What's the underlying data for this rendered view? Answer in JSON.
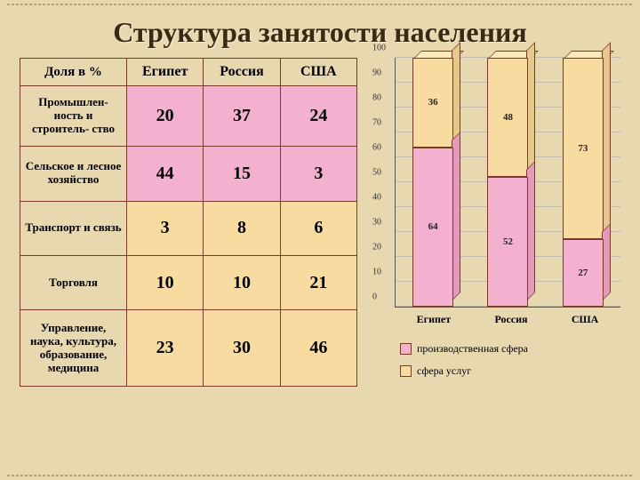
{
  "title": "Структура занятости населения",
  "table": {
    "corner": "Доля в %",
    "countries": [
      "Египет",
      "Россия",
      "США"
    ],
    "rows": [
      {
        "label": "Промышлен-\nность и строитель-\nство",
        "cls": "pink",
        "vals": [
          20,
          37,
          24
        ]
      },
      {
        "label": "Сельское и лесное хозяйство",
        "cls": "pink",
        "vals": [
          44,
          15,
          3
        ]
      },
      {
        "label": "Транспорт и связь",
        "cls": "cream",
        "vals": [
          3,
          8,
          6
        ]
      },
      {
        "label": "Торговля",
        "cls": "cream",
        "vals": [
          10,
          10,
          21
        ]
      },
      {
        "label": "Управление, наука, культура, образование, медицина",
        "cls": "cream",
        "vals": [
          23,
          30,
          46
        ]
      }
    ]
  },
  "chart": {
    "type": "stacked-bar-3d",
    "categories": [
      "Египет",
      "Россия",
      "США"
    ],
    "series": [
      {
        "name": "производственная сфера",
        "color": "pink",
        "values": [
          64,
          52,
          27
        ]
      },
      {
        "name": "сфера услуг",
        "color": "cream",
        "values": [
          36,
          48,
          73
        ]
      }
    ],
    "ylim": [
      0,
      100
    ],
    "ytick_step": 10,
    "colors": {
      "pink": "#f4b0cf",
      "cream": "#f7dba1",
      "border": "#7a3a2a",
      "grid": "#aaaaaa",
      "bg": "#e8d8b0"
    },
    "label_fontsize": 11
  },
  "legend": {
    "items": [
      "производственная сфера",
      "сфера услуг"
    ]
  }
}
